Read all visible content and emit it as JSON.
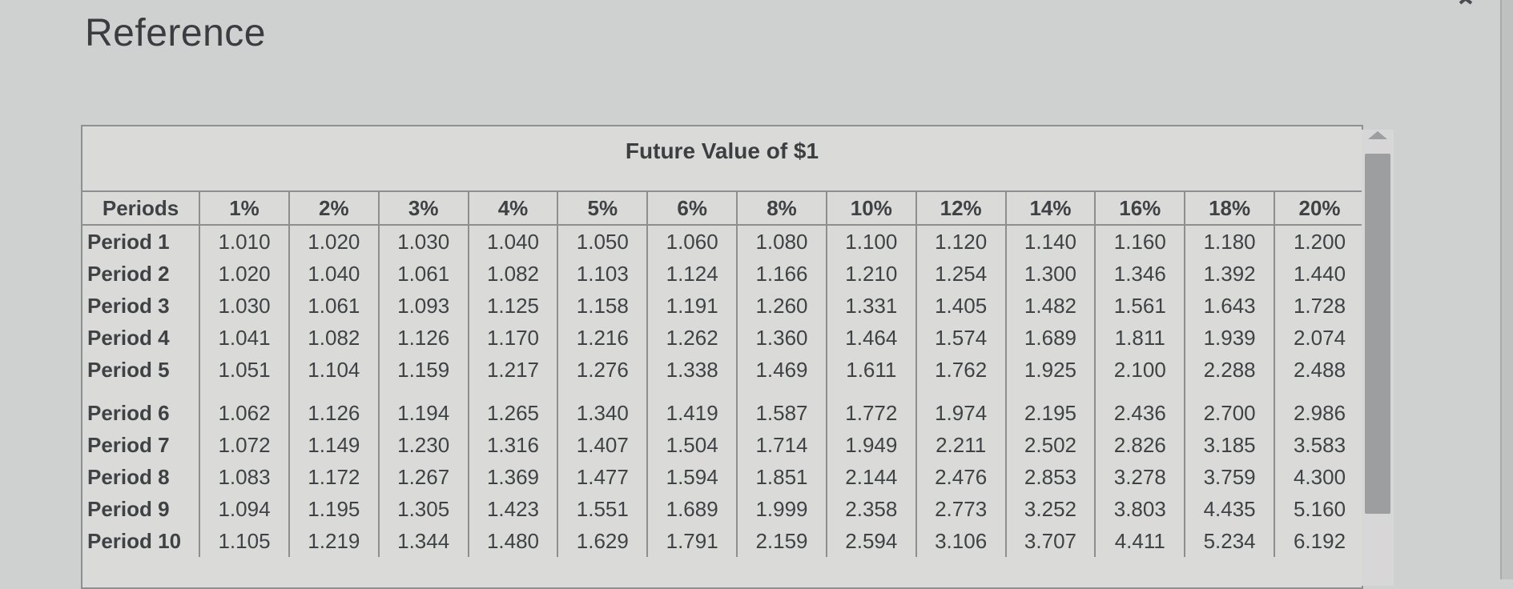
{
  "page": {
    "title": "Reference"
  },
  "table": {
    "caption": "Future Value of $1",
    "headers": [
      "Periods",
      "1%",
      "2%",
      "3%",
      "4%",
      "5%",
      "6%",
      "8%",
      "10%",
      "12%",
      "14%",
      "16%",
      "18%",
      "20%"
    ],
    "rows": [
      [
        "Period 1",
        "1.010",
        "1.020",
        "1.030",
        "1.040",
        "1.050",
        "1.060",
        "1.080",
        "1.100",
        "1.120",
        "1.140",
        "1.160",
        "1.180",
        "1.200"
      ],
      [
        "Period 2",
        "1.020",
        "1.040",
        "1.061",
        "1.082",
        "1.103",
        "1.124",
        "1.166",
        "1.210",
        "1.254",
        "1.300",
        "1.346",
        "1.392",
        "1.440"
      ],
      [
        "Period 3",
        "1.030",
        "1.061",
        "1.093",
        "1.125",
        "1.158",
        "1.191",
        "1.260",
        "1.331",
        "1.405",
        "1.482",
        "1.561",
        "1.643",
        "1.728"
      ],
      [
        "Period 4",
        "1.041",
        "1.082",
        "1.126",
        "1.170",
        "1.216",
        "1.262",
        "1.360",
        "1.464",
        "1.574",
        "1.689",
        "1.811",
        "1.939",
        "2.074"
      ],
      [
        "Period 5",
        "1.051",
        "1.104",
        "1.159",
        "1.217",
        "1.276",
        "1.338",
        "1.469",
        "1.611",
        "1.762",
        "1.925",
        "2.100",
        "2.288",
        "2.488"
      ],
      [
        "Period 6",
        "1.062",
        "1.126",
        "1.194",
        "1.265",
        "1.340",
        "1.419",
        "1.587",
        "1.772",
        "1.974",
        "2.195",
        "2.436",
        "2.700",
        "2.986"
      ],
      [
        "Period 7",
        "1.072",
        "1.149",
        "1.230",
        "1.316",
        "1.407",
        "1.504",
        "1.714",
        "1.949",
        "2.211",
        "2.502",
        "2.826",
        "3.185",
        "3.583"
      ],
      [
        "Period 8",
        "1.083",
        "1.172",
        "1.267",
        "1.369",
        "1.477",
        "1.594",
        "1.851",
        "2.144",
        "2.476",
        "2.853",
        "3.278",
        "3.759",
        "4.300"
      ],
      [
        "Period 9",
        "1.094",
        "1.195",
        "1.305",
        "1.423",
        "1.551",
        "1.689",
        "1.999",
        "2.358",
        "2.773",
        "3.252",
        "3.803",
        "4.435",
        "5.160"
      ],
      [
        "Period 10",
        "1.105",
        "1.219",
        "1.344",
        "1.480",
        "1.629",
        "1.791",
        "2.159",
        "2.594",
        "3.106",
        "3.707",
        "4.411",
        "5.234",
        "6.192"
      ]
    ]
  },
  "icons": {
    "close": "close-icon",
    "scroll_up": "scroll-up-arrow-icon"
  }
}
